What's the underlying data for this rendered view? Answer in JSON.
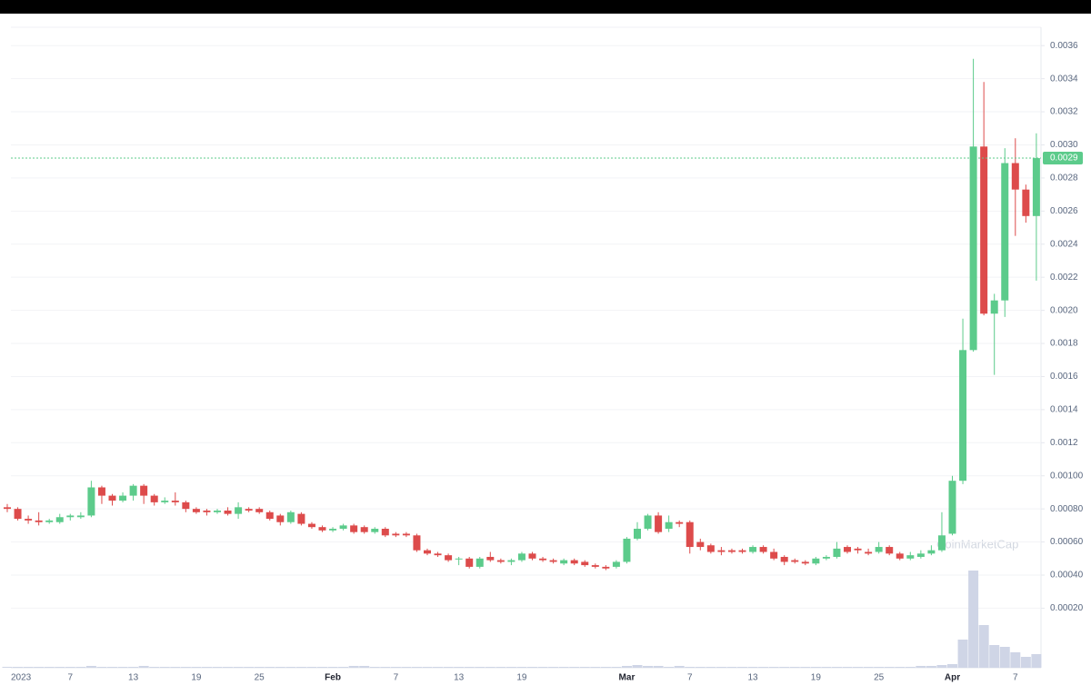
{
  "chart_data": {
    "type": "candlestick",
    "watermark": "CoinMarketCap",
    "categories": [
      "2023",
      null,
      null,
      null,
      null,
      null,
      "7",
      null,
      null,
      null,
      null,
      null,
      "13",
      null,
      null,
      null,
      null,
      null,
      "19",
      null,
      null,
      null,
      null,
      null,
      "25",
      null,
      null,
      null,
      null,
      null,
      null,
      "Feb",
      null,
      null,
      null,
      null,
      null,
      "7",
      null,
      null,
      null,
      null,
      null,
      "13",
      null,
      null,
      null,
      null,
      null,
      "19",
      null,
      null,
      null,
      null,
      null,
      null,
      null,
      null,
      null,
      "Mar",
      null,
      null,
      null,
      null,
      null,
      "7",
      null,
      null,
      null,
      null,
      null,
      "13",
      null,
      null,
      null,
      null,
      null,
      "19",
      null,
      null,
      null,
      null,
      null,
      "25",
      null,
      null,
      null,
      null,
      null,
      null,
      "Apr",
      null,
      null,
      null,
      null,
      null,
      "7",
      null,
      null
    ],
    "open": [
      0.00081,
      0.0008,
      0.00074,
      0.00073,
      0.00072,
      0.00072,
      0.00075,
      0.00075,
      0.00076,
      0.00093,
      0.00088,
      0.00085,
      0.00088,
      0.00094,
      0.00088,
      0.00084,
      0.00085,
      0.00084,
      0.0008,
      0.00079,
      0.00078,
      0.00079,
      0.00077,
      0.0008,
      0.0008,
      0.00078,
      0.00076,
      0.00072,
      0.00077,
      0.00071,
      0.00069,
      0.00067,
      0.00068,
      0.0007,
      0.00069,
      0.00066,
      0.00068,
      0.00065,
      0.00065,
      0.00064,
      0.00055,
      0.00053,
      0.00052,
      0.0005,
      0.0005,
      0.00045,
      0.00051,
      0.00049,
      0.00048,
      0.00049,
      0.00053,
      0.0005,
      0.00049,
      0.00047,
      0.00049,
      0.00048,
      0.00046,
      0.00045,
      0.00045,
      0.00048,
      0.00062,
      0.00068,
      0.00076,
      0.00068,
      0.00072,
      0.00072,
      0.0006,
      0.00058,
      0.00055,
      0.00055,
      0.00055,
      0.00054,
      0.00057,
      0.00054,
      0.00051,
      0.00049,
      0.00048,
      0.00047,
      0.0005,
      0.00051,
      0.00057,
      0.00056,
      0.00054,
      0.00054,
      0.00057,
      0.00053,
      0.0005,
      0.00051,
      0.00053,
      0.00055,
      0.00065,
      0.00097,
      0.00176,
      0.00299,
      0.00198,
      0.00206,
      0.00289,
      0.00273,
      0.00257
    ],
    "high": [
      0.00083,
      0.00081,
      0.00076,
      0.00078,
      0.00074,
      0.00077,
      0.00077,
      0.00078,
      0.00097,
      0.00094,
      0.00089,
      0.0009,
      0.00095,
      0.00095,
      0.00089,
      0.00087,
      0.0009,
      0.00085,
      0.00081,
      0.0008,
      0.0008,
      0.00081,
      0.00084,
      0.00081,
      0.00081,
      0.00079,
      0.00077,
      0.00079,
      0.00078,
      0.00072,
      0.0007,
      0.00069,
      0.00071,
      0.00071,
      0.0007,
      0.00069,
      0.00069,
      0.00066,
      0.00066,
      0.00065,
      0.00056,
      0.00054,
      0.00053,
      0.00051,
      0.00051,
      0.00051,
      0.00054,
      0.0005,
      0.0005,
      0.00054,
      0.00054,
      0.00051,
      0.0005,
      0.0005,
      0.0005,
      0.00049,
      0.00047,
      0.00046,
      0.00049,
      0.00063,
      0.00072,
      0.00077,
      0.00078,
      0.00076,
      0.00073,
      0.00073,
      0.00062,
      0.00059,
      0.00057,
      0.00056,
      0.00056,
      0.00058,
      0.00058,
      0.00056,
      0.00052,
      0.0005,
      0.00049,
      0.00051,
      0.00052,
      0.0006,
      0.00058,
      0.00057,
      0.00056,
      0.0006,
      0.00058,
      0.00054,
      0.00054,
      0.00055,
      0.00058,
      0.00078,
      0.001,
      0.00195,
      0.00352,
      0.00338,
      0.0021,
      0.00298,
      0.00304,
      0.00276,
      0.00307
    ],
    "low": [
      0.00078,
      0.00073,
      0.00071,
      0.0007,
      0.00071,
      0.00071,
      0.00073,
      0.00074,
      0.00075,
      0.00083,
      0.00082,
      0.00084,
      0.00085,
      0.00083,
      0.00082,
      0.00083,
      0.00082,
      0.00078,
      0.00077,
      0.00076,
      0.00077,
      0.00076,
      0.00074,
      0.00078,
      0.00077,
      0.00073,
      0.0007,
      0.00071,
      0.0007,
      0.00068,
      0.00066,
      0.00066,
      0.00067,
      0.00065,
      0.00065,
      0.00065,
      0.00063,
      0.00063,
      0.00063,
      0.00054,
      0.00052,
      0.00051,
      0.00048,
      0.00046,
      0.00044,
      0.00044,
      0.00048,
      0.00047,
      0.00046,
      0.00048,
      0.00049,
      0.00048,
      0.00047,
      0.00046,
      0.00046,
      0.00045,
      0.00044,
      0.00043,
      0.00044,
      0.00047,
      0.00061,
      0.00067,
      0.00065,
      0.00066,
      0.00069,
      0.00053,
      0.00055,
      0.00053,
      0.00052,
      0.00053,
      0.00053,
      0.00053,
      0.00053,
      0.00049,
      0.00046,
      0.00047,
      0.00046,
      0.00046,
      0.00049,
      0.0005,
      0.00053,
      0.00053,
      0.00052,
      0.00053,
      0.00052,
      0.00049,
      0.00049,
      0.0005,
      0.00052,
      0.00054,
      0.00064,
      0.00095,
      0.00175,
      0.00197,
      0.00161,
      0.00196,
      0.00245,
      0.00253,
      0.00218
    ],
    "close": [
      0.0008,
      0.00074,
      0.00073,
      0.00072,
      0.00073,
      0.00075,
      0.00076,
      0.00076,
      0.00093,
      0.00088,
      0.00085,
      0.00088,
      0.00094,
      0.00088,
      0.00084,
      0.00085,
      0.00084,
      0.0008,
      0.00078,
      0.00078,
      0.00079,
      0.00077,
      0.00081,
      0.00079,
      0.00078,
      0.00074,
      0.00072,
      0.00078,
      0.00071,
      0.00069,
      0.00067,
      0.00068,
      0.0007,
      0.00066,
      0.00066,
      0.00068,
      0.00064,
      0.00064,
      0.00064,
      0.00055,
      0.00053,
      0.00052,
      0.00049,
      0.0005,
      0.00045,
      0.0005,
      0.00049,
      0.00048,
      0.00049,
      0.00053,
      0.0005,
      0.00049,
      0.00048,
      0.00049,
      0.00047,
      0.00046,
      0.00045,
      0.00044,
      0.00048,
      0.00062,
      0.00068,
      0.00076,
      0.00066,
      0.00072,
      0.00071,
      0.00057,
      0.00057,
      0.00054,
      0.00054,
      0.00054,
      0.00054,
      0.00057,
      0.00054,
      0.0005,
      0.00048,
      0.00048,
      0.00047,
      0.0005,
      0.00051,
      0.00056,
      0.00054,
      0.00055,
      0.00053,
      0.00057,
      0.00053,
      0.0005,
      0.00052,
      0.00053,
      0.00055,
      0.00064,
      0.00097,
      0.00176,
      0.00299,
      0.00198,
      0.00206,
      0.00289,
      0.00273,
      0.00257,
      0.00292
    ],
    "volume": [
      1,
      1,
      1,
      1,
      1,
      1,
      1,
      1,
      2,
      1,
      1,
      1,
      1,
      2,
      1,
      1,
      1,
      1,
      1,
      1,
      1,
      1,
      1,
      1,
      1,
      1,
      1,
      1,
      1,
      1,
      1,
      1,
      1,
      2,
      2,
      1,
      1,
      1,
      1,
      1,
      1,
      1,
      1,
      1,
      1,
      1,
      1,
      1,
      1,
      1,
      1,
      1,
      1,
      1,
      1,
      1,
      1,
      1,
      1,
      2,
      3,
      2,
      2,
      1,
      2,
      1,
      1,
      1,
      1,
      1,
      1,
      1,
      1,
      1,
      1,
      1,
      1,
      1,
      1,
      1,
      1,
      1,
      1,
      1,
      1,
      1,
      1,
      2,
      2,
      3,
      4,
      31,
      107,
      47,
      25,
      23,
      17,
      12,
      15
    ],
    "up_color": "#5ccb8b",
    "down_color": "#dd4b4b",
    "volume_color": "#cfd5e6",
    "last_price": {
      "value": 0.00292,
      "label": "0.0029"
    },
    "ylim": [
      -0.00016,
      0.0037
    ],
    "yticks": [
      {
        "value": 0.0002,
        "label": "0.00020"
      },
      {
        "value": 0.0004,
        "label": "0.00040"
      },
      {
        "value": 0.0006,
        "label": "0.00060"
      },
      {
        "value": 0.0008,
        "label": "0.00080"
      },
      {
        "value": 0.001,
        "label": "0.00100"
      },
      0.0012,
      0.0014,
      0.0016,
      0.0018,
      {
        "value": 0.002,
        "label": "0.0020"
      },
      0.0022,
      0.0024,
      0.0026,
      0.0028,
      {
        "value": 0.003,
        "label": "0.0030"
      },
      0.0032,
      0.0034,
      0.0036
    ],
    "grid": true
  }
}
